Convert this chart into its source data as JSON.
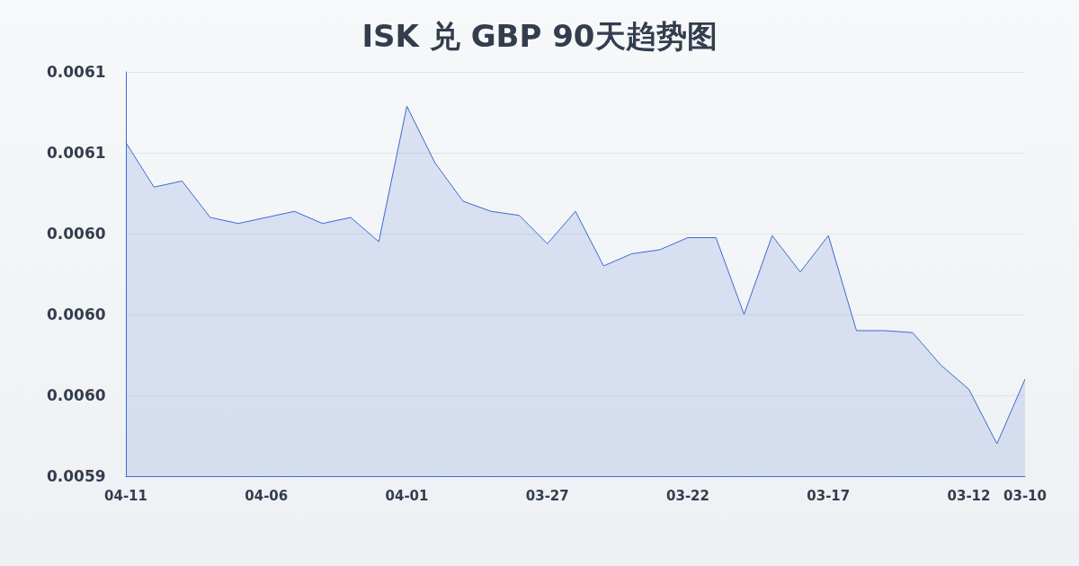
{
  "chart_data": {
    "type": "area",
    "title": "ISK 兑 GBP 90天趋势图",
    "categories": [
      "04-11",
      null,
      null,
      null,
      null,
      "04-06",
      null,
      null,
      null,
      null,
      "04-01",
      null,
      null,
      null,
      null,
      "03-27",
      null,
      null,
      null,
      null,
      "03-22",
      null,
      null,
      null,
      null,
      "03-17",
      null,
      null,
      null,
      null,
      "03-12",
      null,
      "03-10"
    ],
    "series": [
      {
        "color": "#3a6bd0",
        "values": [
          0.006085,
          0.006063,
          0.006066,
          0.006048,
          0.006045,
          0.006048,
          0.006051,
          0.006045,
          0.006048,
          0.006036,
          0.006103,
          0.006075,
          0.006056,
          0.006051,
          0.006049,
          0.006035,
          0.006051,
          0.006024,
          0.00603,
          0.006032,
          0.006038,
          0.006038,
          0.006,
          0.006039,
          0.006021,
          0.006039,
          0.005992,
          0.005992,
          0.005991,
          0.005975,
          0.005963,
          0.005936,
          0.005968
        ]
      }
    ],
    "ylim": [
      0.00592,
      0.00612
    ],
    "yticks": [
      {
        "value": 0.00592,
        "label": "0.0059"
      },
      {
        "value": 0.00596,
        "label": "0.0060"
      },
      {
        "value": 0.006,
        "label": "0.0060"
      },
      {
        "value": 0.00604,
        "label": "0.0060"
      },
      {
        "value": 0.00608,
        "label": "0.0061"
      },
      {
        "value": 0.00612,
        "label": "0.0061"
      }
    ],
    "grid": "y",
    "marker": "none",
    "line_style": "solid"
  }
}
